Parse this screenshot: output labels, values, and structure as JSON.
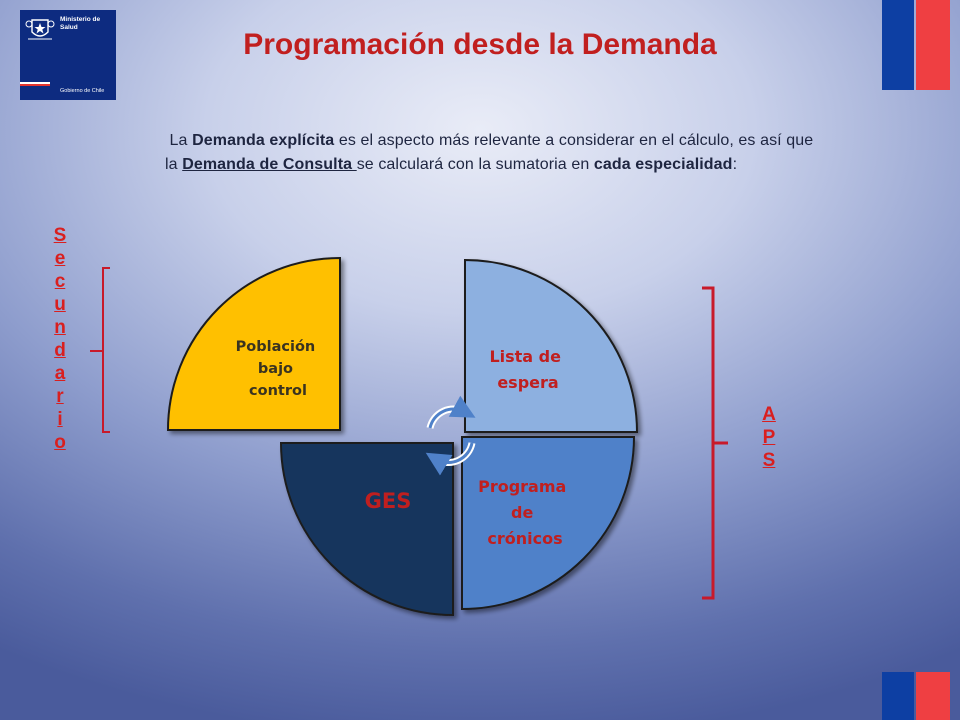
{
  "logo": {
    "ministry": [
      "Ministerio de",
      "Salud"
    ],
    "government": "Gobierno de Chile"
  },
  "title": "Programación desde la Demanda",
  "paragraph": {
    "t1": "La ",
    "b1": "Demanda explícita",
    "t2": " es el aspecto más relevante a considerar en el cálculo, es así que la  ",
    "u1": "Demanda de Consulta ",
    "t3": "se calculará con la sumatoria en ",
    "b2": "cada especialidad",
    "t4": ":"
  },
  "left_label": [
    "S",
    "e",
    "c",
    "u",
    "n",
    "d",
    "a",
    "r",
    "i",
    "o"
  ],
  "right_label": [
    "A",
    "P",
    "S"
  ],
  "diagram": {
    "quadrants": [
      {
        "id": "poblacion",
        "lines": [
          "Población",
          "bajo",
          "control"
        ],
        "color": "#ffc000",
        "text_color": "#3a3320"
      },
      {
        "id": "lista",
        "lines": [
          "Lista de",
          "espera"
        ],
        "color": "#8db0e0",
        "text_color": "#c01f1f"
      },
      {
        "id": "ges",
        "lines": [
          "GES"
        ],
        "color": "#17365d",
        "text_color": "#c01f1f"
      },
      {
        "id": "programa",
        "lines": [
          "Programa",
          "de",
          "crónicos"
        ],
        "color": "#4f81c9",
        "text_color": "#c01f1f"
      }
    ]
  },
  "colors": {
    "title": "#c11f1f",
    "accent_red": "#d91f1f",
    "bracket": "#c81a2a",
    "flag_blue": "#0d3fa3",
    "flag_red": "#ef3f42"
  }
}
